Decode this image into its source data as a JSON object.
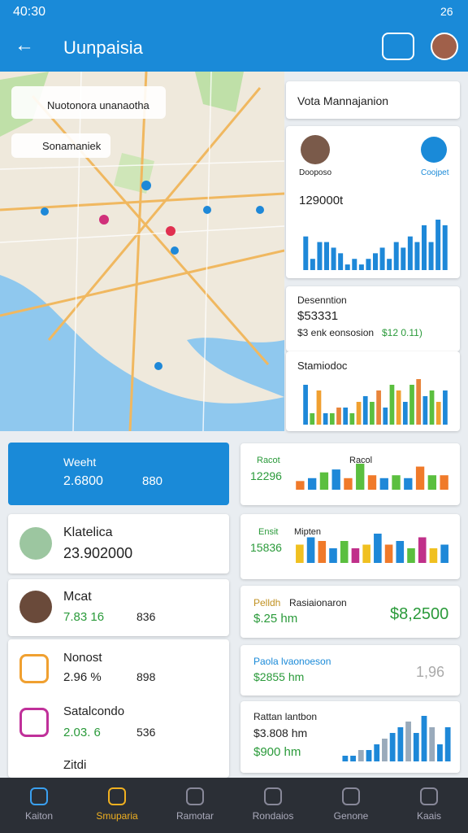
{
  "status": {
    "time": "40:30",
    "battery": "26"
  },
  "header": {
    "title": "Uunpaisia"
  },
  "map": {
    "labels": [
      "Nuotonora unanaotha",
      "Sonamaniek"
    ]
  },
  "panel": {
    "title": "Vota Mannajanion",
    "user": "Dooposo",
    "action": "Coojpet",
    "stat1": {
      "value": "129000t",
      "bars": [
        6,
        2,
        5,
        5,
        4,
        3,
        1,
        2,
        1,
        2,
        3,
        4,
        2,
        5,
        4,
        6,
        5,
        8,
        5,
        9,
        8
      ],
      "colors": [
        "#1e88d8"
      ]
    },
    "stat2": {
      "title": "Desenntion",
      "value": "$53331",
      "note": "$3 enk eonsosion",
      "change": "$12 0.11)"
    },
    "stat3": {
      "title": "Stamiodoc",
      "bars": [
        7,
        2,
        6,
        2,
        2,
        3,
        3,
        2,
        4,
        5,
        4,
        6,
        3,
        7,
        6,
        4,
        7,
        8,
        5,
        6,
        4,
        6
      ],
      "colors": [
        "#1e88d8",
        "#5bbf3f",
        "#f0a030",
        "#1e88d8",
        "#5bbf3f",
        "#e8843a"
      ]
    }
  },
  "list": [
    {
      "title": "Weeht",
      "value": "2.6800",
      "extra": "880"
    },
    {
      "title": "Klatelica",
      "value": "23.902000"
    },
    {
      "title": "Mcat",
      "value": "7.83 16",
      "extra": "836"
    },
    {
      "title": "Nonost",
      "value": "2.96 %",
      "extra": "898"
    },
    {
      "title": "Satalcondo",
      "value": "2.03. 6",
      "extra": "536"
    },
    {
      "title": "Zitdi"
    }
  ],
  "cards": [
    {
      "label": "Racot",
      "title": "Racol",
      "value": "12296",
      "bars": [
        3,
        4,
        6,
        7,
        4,
        9,
        5,
        4,
        5,
        4,
        8,
        5,
        5
      ],
      "colors": [
        "#f07a2a",
        "#1e88d8",
        "#5bbf3f",
        "#1e88d8",
        "#f07a2a",
        "#5bbf3f"
      ]
    },
    {
      "label": "Ensit",
      "title": "Mipten",
      "value": "15836",
      "bars": [
        5,
        7,
        6,
        4,
        6,
        4,
        5,
        8,
        5,
        6,
        4,
        7,
        4,
        5
      ],
      "colors": [
        "#f0c020",
        "#1e88d8",
        "#f07a2a",
        "#1e88d8",
        "#5bbf3f",
        "#c0308a"
      ]
    },
    {
      "label": "Pelldh",
      "title": "Rasiaionaron",
      "value": "$.25 hm",
      "extra": "$8,2500"
    },
    {
      "title": "Paola lvaonoeson",
      "value": "$2855 hm",
      "extra": "1,96"
    },
    {
      "title": "Rattan lantbon",
      "value": "$3.808 hm",
      "extra": "$900 hm",
      "bars": [
        1,
        1,
        2,
        2,
        3,
        4,
        5,
        6,
        7,
        5,
        8,
        6,
        3,
        6
      ],
      "colors": [
        "#1e88d8",
        "#1e88d8",
        "#9ab"
      ]
    }
  ],
  "nav": [
    "Kaiton",
    "Smuparia",
    "Ramotar",
    "Rondaios",
    "Genone",
    "Kaais"
  ]
}
